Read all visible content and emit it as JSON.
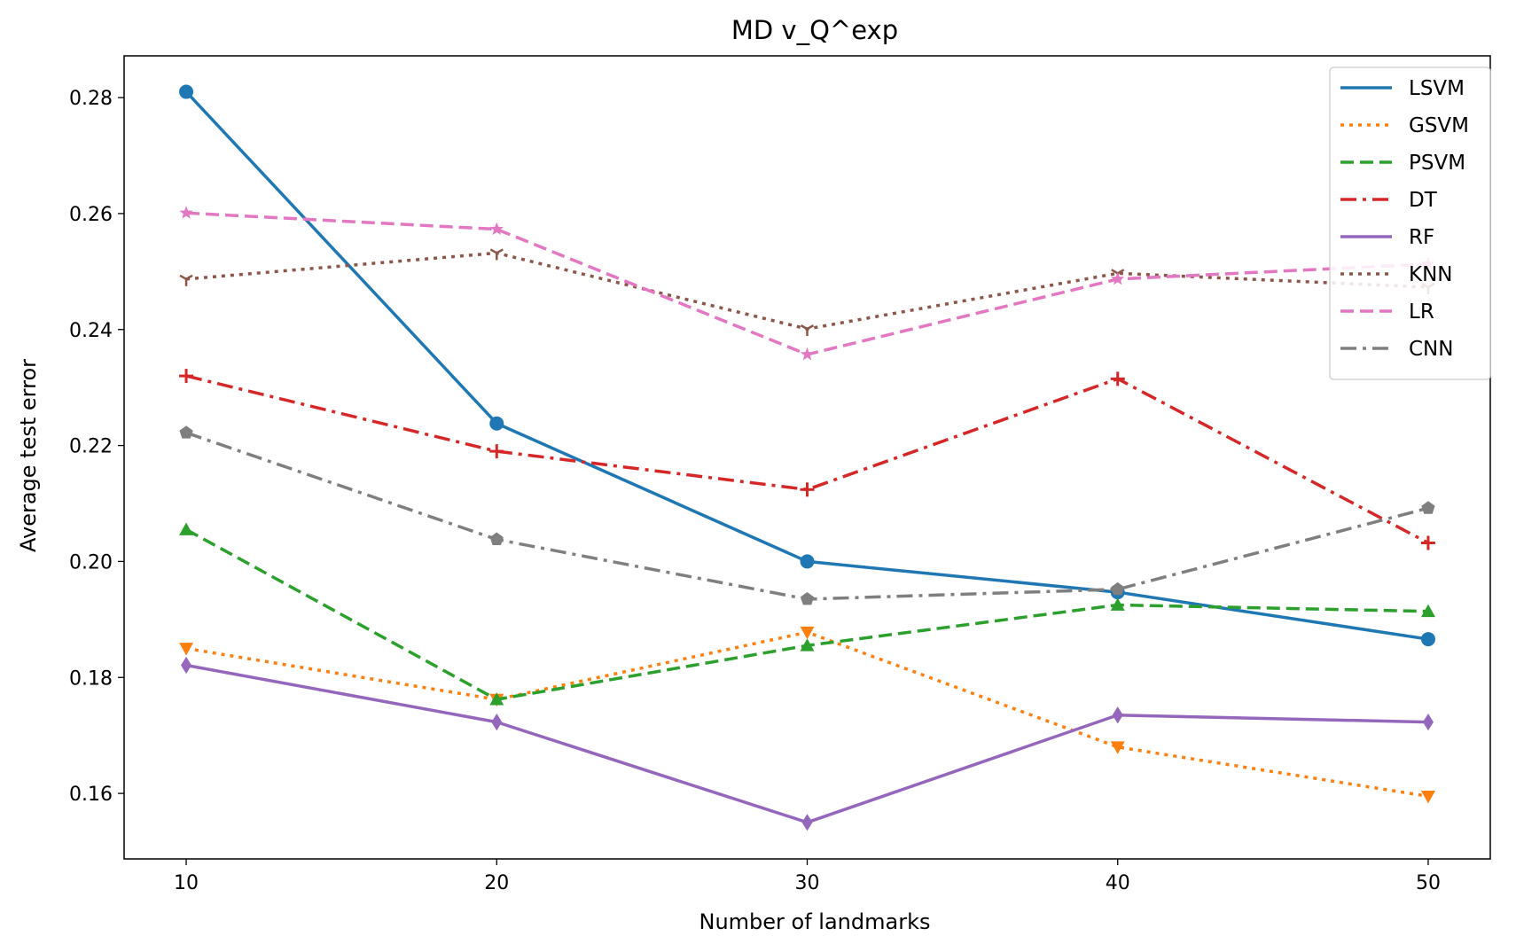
{
  "chart_data": {
    "type": "line",
    "title": "MD v_Q^exp",
    "xlabel": "Number of landmarks",
    "ylabel": "Average test error",
    "x": [
      10,
      20,
      30,
      40,
      50
    ],
    "xlim": [
      8,
      52
    ],
    "ylim": [
      0.1487,
      0.2872
    ],
    "xticks": [
      10,
      20,
      30,
      40,
      50
    ],
    "yticks": [
      0.16,
      0.18,
      0.2,
      0.22,
      0.24,
      0.26,
      0.28
    ],
    "ytick_labels": [
      "0.16",
      "0.18",
      "0.20",
      "0.22",
      "0.24",
      "0.26",
      "0.28"
    ],
    "grid": false,
    "legend_position": "top-right",
    "series": [
      {
        "name": "LSVM",
        "values": [
          0.281,
          0.2238,
          0.2,
          0.1947,
          0.1866
        ],
        "color": "#1f77b4",
        "dash": "solid",
        "marker": "circle"
      },
      {
        "name": "GSVM",
        "values": [
          0.185,
          0.1762,
          0.1878,
          0.168,
          0.1595
        ],
        "color": "#ff7f0e",
        "dash": "dotted",
        "marker": "triangle-down"
      },
      {
        "name": "PSVM",
        "values": [
          0.2055,
          0.1762,
          0.1855,
          0.1925,
          0.1914
        ],
        "color": "#2ca02c",
        "dash": "dashed",
        "marker": "triangle-up"
      },
      {
        "name": "DT",
        "values": [
          0.232,
          0.219,
          0.2124,
          0.2315,
          0.2032
        ],
        "color": "#d62728",
        "dash": "dashdot",
        "marker": "plus"
      },
      {
        "name": "RF",
        "values": [
          0.1821,
          0.1723,
          0.155,
          0.1735,
          0.1723
        ],
        "color": "#9467bd",
        "dash": "solid",
        "marker": "diamond"
      },
      {
        "name": "KNN",
        "values": [
          0.2487,
          0.2532,
          0.2401,
          0.2497,
          0.2473
        ],
        "color": "#8c564b",
        "dash": "dotted",
        "marker": "tri-down"
      },
      {
        "name": "LR",
        "values": [
          0.2601,
          0.2573,
          0.2357,
          0.2487,
          0.2513
        ],
        "color": "#e377c2",
        "dash": "dashed",
        "marker": "star"
      },
      {
        "name": "CNN",
        "values": [
          0.2222,
          0.2038,
          0.1935,
          0.1952,
          0.2092
        ],
        "color": "#7f7f7f",
        "dash": "dashdot",
        "marker": "pentagon"
      }
    ]
  }
}
